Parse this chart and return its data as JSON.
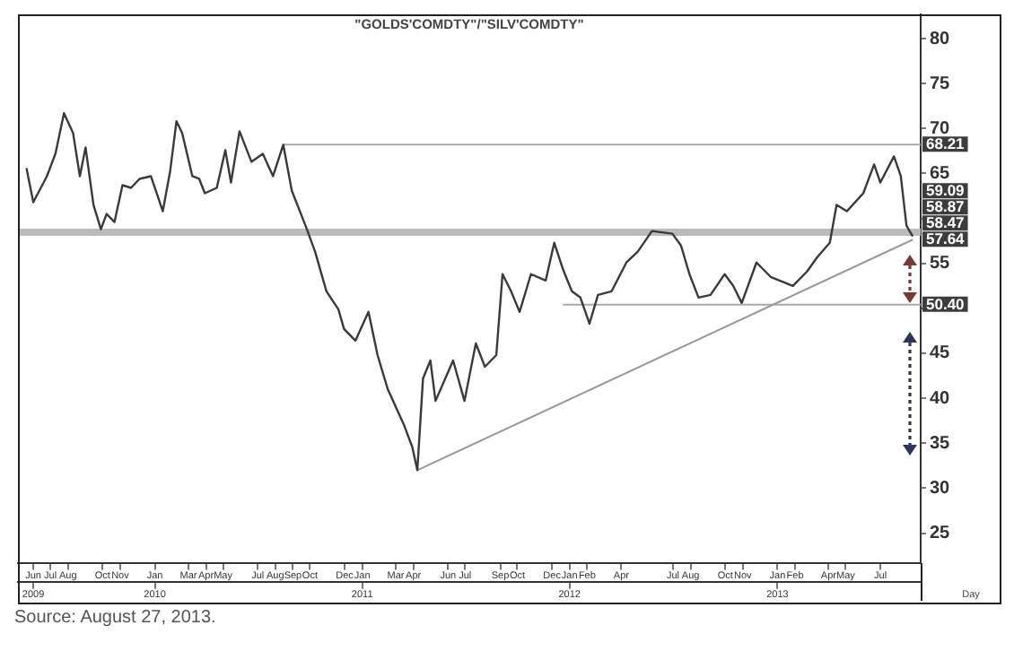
{
  "chart_data": {
    "type": "line",
    "title": "\"GOLDS'COMDTY\"/\"SILV'COMDTY\"",
    "xlabel": "Day",
    "xlim": [
      "2009-05-05",
      "2013-09-10"
    ],
    "ylim": [
      21.7,
      82.7
    ],
    "yticks": [
      25,
      30,
      35,
      40,
      45,
      {
        "value": 50,
        "label": null
      },
      55,
      {
        "value": 60,
        "label": null
      },
      65,
      70,
      75,
      80
    ],
    "xticks": [
      {
        "value": "2009-06",
        "label": "Jun"
      },
      {
        "value": "2009-07",
        "label": "Jul"
      },
      {
        "value": "2009-08",
        "label": "Aug"
      },
      {
        "value": "2009-10",
        "label": "Oct"
      },
      {
        "value": "2009-11",
        "label": "Nov"
      },
      {
        "value": "2010-01",
        "label": "Jan"
      },
      {
        "value": "2010-03",
        "label": "Mar"
      },
      {
        "value": "2010-04",
        "label": "Apr"
      },
      {
        "value": "2010-05",
        "label": "May"
      },
      {
        "value": "2010-07",
        "label": "Jul"
      },
      {
        "value": "2010-08",
        "label": "Aug"
      },
      {
        "value": "2010-09",
        "label": "Sep"
      },
      {
        "value": "2010-10",
        "label": "Oct"
      },
      {
        "value": "2010-12",
        "label": "Dec"
      },
      {
        "value": "2011-01",
        "label": "Jan"
      },
      {
        "value": "2011-03",
        "label": "Mar"
      },
      {
        "value": "2011-04",
        "label": "Apr"
      },
      {
        "value": "2011-06",
        "label": "Jun"
      },
      {
        "value": "2011-07",
        "label": "Jul"
      },
      {
        "value": "2011-09",
        "label": "Sep"
      },
      {
        "value": "2011-10",
        "label": "Oct"
      },
      {
        "value": "2011-12",
        "label": "Dec"
      },
      {
        "value": "2012-01",
        "label": "Jan"
      },
      {
        "value": "2012-02",
        "label": "Feb"
      },
      {
        "value": "2012-04",
        "label": "Apr"
      },
      {
        "value": "2012-07",
        "label": "Jul"
      },
      {
        "value": "2012-08",
        "label": "Aug"
      },
      {
        "value": "2012-10",
        "label": "Oct"
      },
      {
        "value": "2012-11",
        "label": "Nov"
      },
      {
        "value": "2013-01",
        "label": "Jan"
      },
      {
        "value": "2013-02",
        "label": "Feb"
      },
      {
        "value": "2013-04",
        "label": "Apr"
      },
      {
        "value": "2013-05",
        "label": "May"
      },
      {
        "value": "2013-07",
        "label": "Jul"
      }
    ],
    "x2lim": [
      "2009-05-05",
      "2013-09-10"
    ],
    "x2ticks": [
      {
        "value": "2009-06",
        "label": "2009"
      },
      {
        "value": "2010-01",
        "label": "2010"
      },
      {
        "value": "2011-01",
        "label": "2011"
      },
      {
        "value": "2012-01",
        "label": "2012"
      },
      {
        "value": "2013-01",
        "label": "2013"
      }
    ],
    "grid": false,
    "legend": false,
    "marker": "none",
    "series": [
      {
        "color": "#3a3a3a",
        "x": [
          "2009-05-20",
          "2009-06-01",
          "2009-06-25",
          "2009-07-10",
          "2009-07-25",
          "2009-08-10",
          "2009-08-22",
          "2009-09-01",
          "2009-09-15",
          "2009-09-28",
          "2009-10-08",
          "2009-10-22",
          "2009-11-05",
          "2009-11-20",
          "2009-12-05",
          "2009-12-25",
          "2010-01-15",
          "2010-01-28",
          "2010-02-08",
          "2010-02-18",
          "2010-03-08",
          "2010-03-20",
          "2010-03-30",
          "2010-04-20",
          "2010-05-05",
          "2010-05-15",
          "2010-05-30",
          "2010-06-20",
          "2010-07-10",
          "2010-07-28",
          "2010-08-15",
          "2010-08-30",
          "2010-09-25",
          "2010-10-10",
          "2010-10-30",
          "2010-11-20",
          "2010-11-30",
          "2010-12-20",
          "2011-01-12",
          "2011-01-28",
          "2011-02-15",
          "2011-03-15",
          "2011-03-30",
          "2011-04-08",
          "2011-04-18",
          "2011-05-01",
          "2011-05-10",
          "2011-06-10",
          "2011-06-30",
          "2011-07-20",
          "2011-08-05",
          "2011-08-25",
          "2011-09-05",
          "2011-09-20",
          "2011-10-05",
          "2011-10-25",
          "2011-11-20",
          "2011-12-05",
          "2011-12-20",
          "2012-01-05",
          "2012-01-20",
          "2012-02-05",
          "2012-02-20",
          "2012-03-15",
          "2012-04-10",
          "2012-04-30",
          "2012-05-25",
          "2012-06-30",
          "2012-07-15",
          "2012-07-30",
          "2012-08-15",
          "2012-09-05",
          "2012-09-30",
          "2012-10-15",
          "2012-10-30",
          "2012-11-25",
          "2012-12-20",
          "2013-01-28",
          "2013-02-22",
          "2013-03-12",
          "2013-04-03",
          "2013-04-15",
          "2013-05-03",
          "2013-06-01",
          "2013-06-20",
          "2013-07-01",
          "2013-07-25",
          "2013-08-06",
          "2013-08-16",
          "2013-08-27"
        ],
        "values": [
          65.6,
          61.8,
          64.7,
          67.2,
          71.7,
          69.5,
          64.7,
          67.9,
          61.5,
          58.8,
          60.5,
          59.6,
          63.7,
          63.4,
          64.4,
          64.7,
          60.8,
          65.3,
          70.8,
          69.5,
          64.7,
          64.4,
          62.8,
          63.4,
          67.6,
          64.0,
          69.7,
          66.3,
          67.2,
          64.7,
          68.2,
          63.1,
          58.9,
          56.3,
          51.9,
          49.9,
          47.7,
          46.4,
          49.6,
          44.8,
          41.0,
          37.1,
          34.6,
          32.0,
          42.2,
          44.2,
          39.7,
          44.2,
          39.7,
          46.1,
          43.5,
          44.8,
          53.8,
          51.9,
          49.6,
          53.8,
          53.1,
          57.3,
          54.4,
          51.9,
          51.2,
          48.3,
          51.5,
          51.9,
          55.1,
          56.3,
          58.6,
          58.3,
          57.0,
          53.8,
          51.2,
          51.5,
          53.8,
          52.5,
          50.6,
          55.1,
          53.5,
          52.5,
          54.1,
          55.7,
          57.3,
          61.5,
          60.8,
          62.8,
          66.0,
          64.0,
          66.9,
          64.7,
          59.2,
          58.0
        ]
      },
      {
        "color": "#999999",
        "x": [
          "2011-04-08",
          "2013-08-27"
        ],
        "values": [
          32.0,
          57.64
        ]
      },
      {
        "color": "#aaaaaa",
        "x": [
          "2010-08-15",
          "2013-09-10"
        ],
        "values": [
          68.21,
          68.21
        ]
      },
      {
        "color": "#aaaaaa",
        "x": [
          "2011-12-20",
          "2013-09-10"
        ],
        "values": [
          50.4,
          50.4
        ]
      }
    ],
    "ref_lines": [
      {
        "axis": "y",
        "value": 58.47,
        "color": "#bbbbbb"
      }
    ],
    "annotations": [
      {
        "text": "68.21",
        "x": "2013-08-27",
        "y": 68.21
      },
      {
        "text": "59.09",
        "x": "2013-08-27",
        "y": 59.09
      },
      {
        "text": "58.87",
        "x": "2013-08-27",
        "y": 58.87
      },
      {
        "text": "58.47",
        "x": "2013-08-27",
        "y": 58.47
      },
      {
        "text": "57.64",
        "x": "2013-08-27",
        "y": 57.64
      },
      {
        "text": "50.40",
        "x": "2013-08-27",
        "y": 50.4
      },
      "Source: August 27, 2013."
    ]
  }
}
